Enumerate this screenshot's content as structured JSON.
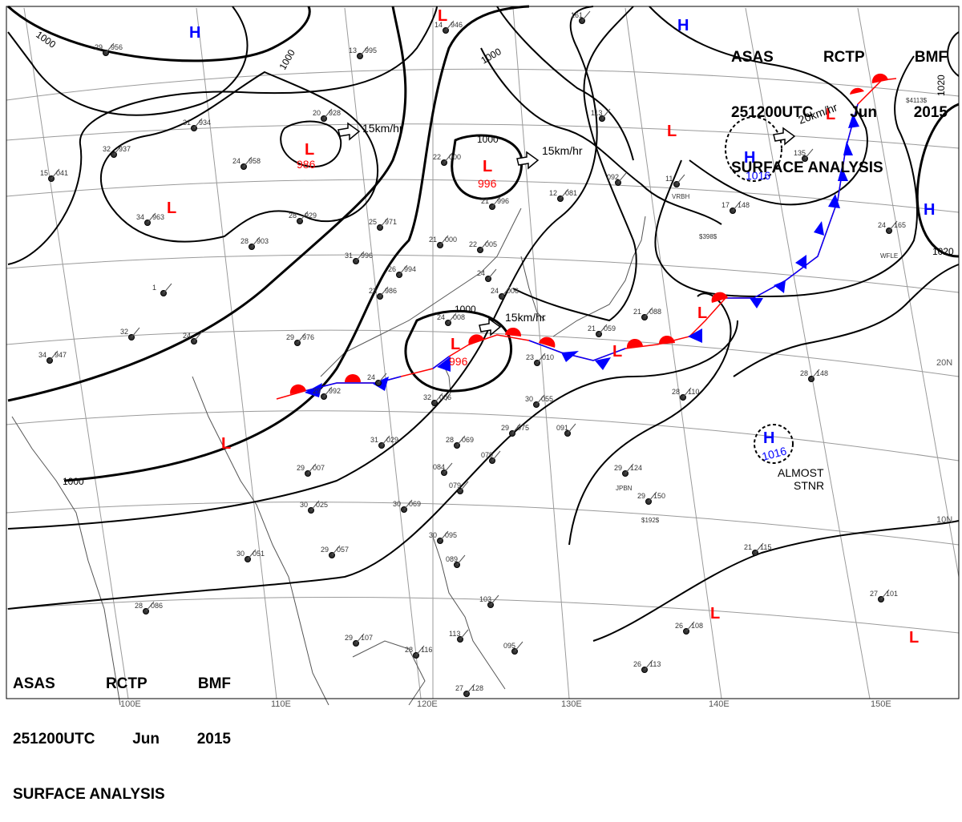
{
  "title": {
    "line1": [
      "ASAS",
      "RCTP",
      "BMF"
    ],
    "line2": [
      "251200UTC",
      "Jun",
      "2015"
    ],
    "line3": "SURFACE ANALYSIS"
  },
  "colors": {
    "low": "#ff0000",
    "high": "#0000ff",
    "isobar": "#000000",
    "grid": "#9a9a9a",
    "coast": "#555555"
  },
  "longitude_labels": [
    "100E",
    "110E",
    "120E",
    "130E",
    "140E",
    "150E"
  ],
  "latitude_labels": [
    "10N",
    "20N"
  ],
  "isobar_labels": [
    "1000",
    "1000",
    "1000",
    "1000",
    "1000",
    "1000",
    "1020",
    "1020"
  ],
  "pressure_centers": [
    {
      "type": "H",
      "color": "high"
    },
    {
      "type": "H",
      "color": "high"
    },
    {
      "type": "H",
      "color": "high",
      "value": "1016"
    },
    {
      "type": "H",
      "color": "high"
    },
    {
      "type": "H",
      "color": "high",
      "value": "1016"
    },
    {
      "type": "L",
      "color": "low",
      "value": "986"
    },
    {
      "type": "L",
      "color": "low",
      "value": "996"
    },
    {
      "type": "L",
      "color": "low",
      "value": "996"
    },
    {
      "type": "L",
      "color": "low"
    },
    {
      "type": "L",
      "color": "low"
    },
    {
      "type": "L",
      "color": "low"
    },
    {
      "type": "L",
      "color": "low"
    },
    {
      "type": "L",
      "color": "low"
    },
    {
      "type": "L",
      "color": "low"
    },
    {
      "type": "L",
      "color": "low"
    },
    {
      "type": "L",
      "color": "low"
    }
  ],
  "movement_labels": [
    "15km/hr",
    "15km/hr",
    "15km/hr",
    "20km/hr"
  ],
  "annotations": [
    "ALMOST",
    "STNR"
  ],
  "station_plots": [
    {
      "temp": "29",
      "pres": "956"
    },
    {
      "temp": "13",
      "pres": "995"
    },
    {
      "temp": "20",
      "pres": "928"
    },
    {
      "temp": "31",
      "pres": "934"
    },
    {
      "temp": "32",
      "pres": "937"
    },
    {
      "temp": "15",
      "pres": "041"
    },
    {
      "temp": "24",
      "pres": "958"
    },
    {
      "temp": "28",
      "pres": "929"
    },
    {
      "temp": "34",
      "pres": "963"
    },
    {
      "temp": "25",
      "pres": "971"
    },
    {
      "temp": "28",
      "pres": "903"
    },
    {
      "temp": "31",
      "pres": "996"
    },
    {
      "temp": "23",
      "pres": "986"
    },
    {
      "temp": "1",
      "pres": ""
    },
    {
      "temp": "24",
      "pres": ""
    },
    {
      "temp": "32",
      "pres": ""
    },
    {
      "temp": "34",
      "pres": "947"
    },
    {
      "temp": "29",
      "pres": "976"
    },
    {
      "temp": "26",
      "pres": "994"
    },
    {
      "temp": "21",
      "pres": "000"
    },
    {
      "temp": "22",
      "pres": "005"
    },
    {
      "temp": "22",
      "pres": "000"
    },
    {
      "temp": "14",
      "pres": "946"
    },
    {
      "temp": "24",
      "pres": ""
    },
    {
      "temp": "21",
      "pres": "996"
    },
    {
      "temp": "24",
      "pres": "006"
    },
    {
      "temp": "24",
      "pres": "008"
    },
    {
      "temp": "32",
      "pres": "006"
    },
    {
      "temp": "24",
      "pres": ""
    },
    {
      "temp": "29",
      "pres": "992"
    },
    {
      "temp": "30",
      "pres": "055"
    },
    {
      "temp": "29",
      "pres": "075"
    },
    {
      "temp": "091",
      "pres": ""
    },
    {
      "temp": "28",
      "pres": "069"
    },
    {
      "temp": "079",
      "pres": ""
    },
    {
      "temp": "084",
      "pres": ""
    },
    {
      "temp": "079",
      "pres": ""
    },
    {
      "temp": "31",
      "pres": "029"
    },
    {
      "temp": "30",
      "pres": "069"
    },
    {
      "temp": "29",
      "pres": "007"
    },
    {
      "temp": "30",
      "pres": "025"
    },
    {
      "temp": "30",
      "pres": "051"
    },
    {
      "temp": "29",
      "pres": "057"
    },
    {
      "temp": "28",
      "pres": "086"
    },
    {
      "temp": "29",
      "pres": "107"
    },
    {
      "temp": "28",
      "pres": "116"
    },
    {
      "temp": "30",
      "pres": "095"
    },
    {
      "temp": "089",
      "pres": ""
    },
    {
      "temp": "113",
      "pres": ""
    },
    {
      "temp": "103",
      "pres": ""
    },
    {
      "temp": "095",
      "pres": ""
    },
    {
      "temp": "27",
      "pres": "128"
    },
    {
      "temp": "12",
      "pres": "081"
    },
    {
      "temp": "092",
      "pres": ""
    },
    {
      "temp": "113",
      "pres": ""
    },
    {
      "temp": "161",
      "pres": ""
    },
    {
      "temp": "11",
      "pres": ""
    },
    {
      "temp": "17",
      "pres": "148"
    },
    {
      "temp": "24",
      "pres": "165"
    },
    {
      "temp": "28",
      "pres": "110"
    },
    {
      "temp": "28",
      "pres": "148"
    },
    {
      "temp": "29",
      "pres": "124"
    },
    {
      "temp": "29",
      "pres": "150"
    },
    {
      "temp": "21",
      "pres": "115"
    },
    {
      "temp": "26",
      "pres": "108"
    },
    {
      "temp": "26",
      "pres": "113"
    },
    {
      "temp": "27",
      "pres": "101"
    },
    {
      "temp": "135",
      "pres": ""
    },
    {
      "temp": "21",
      "pres": "059"
    },
    {
      "temp": "21",
      "pres": "088"
    },
    {
      "temp": "23",
      "pres": "010"
    }
  ],
  "station_codes": [
    "JPBN",
    "$192$",
    "$398$",
    "WFLE",
    "VRBH",
    "$4113$"
  ]
}
